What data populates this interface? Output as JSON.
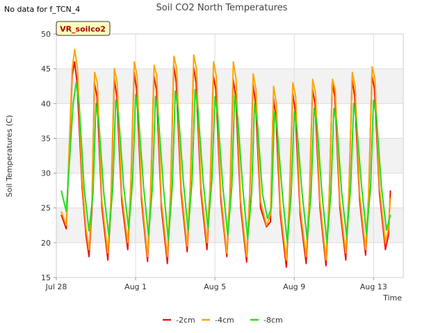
{
  "header": {
    "no_data_note": "No data for f_TCN_4"
  },
  "chart_data": {
    "type": "line",
    "title": "Soil CO2 North Temperatures",
    "site_label": "VR_soilco2",
    "xlabel": "Time",
    "ylabel": "Soil Temperatures (C)",
    "xlim": [
      0,
      17.5
    ],
    "ylim": [
      15,
      50
    ],
    "x_ticks": [
      {
        "value": 0,
        "label": "Jul 28"
      },
      {
        "value": 4,
        "label": "Aug 1"
      },
      {
        "value": 8,
        "label": "Aug 5"
      },
      {
        "value": 12,
        "label": "Aug 9"
      },
      {
        "value": 16,
        "label": "Aug 13"
      }
    ],
    "y_ticks": [
      15,
      20,
      25,
      30,
      35,
      40,
      45,
      50
    ],
    "shaded_bands": [
      [
        20,
        25
      ],
      [
        30,
        35
      ],
      [
        40,
        45
      ]
    ],
    "grid": true,
    "legend_position": "bottom-center",
    "x_units": "days since Jul 28 00:00",
    "series": [
      {
        "name": "-2cm",
        "color": "#ee1111",
        "peaks": [
          46.0,
          43.0,
          43.5,
          44.5,
          44.0,
          45.5,
          45.3,
          44.0,
          43.5,
          42.8,
          40.8,
          41.5,
          42.0,
          43.0,
          43.5,
          44.0
        ],
        "troughs": [
          22.0,
          18.0,
          17.5,
          19.0,
          17.3,
          17.0,
          18.7,
          19.0,
          18.0,
          17.2,
          22.3,
          16.5,
          17.0,
          16.7,
          17.5,
          18.2,
          19.0
        ],
        "points": [
          [
            0.25,
            24.0
          ],
          [
            0.5,
            22.0
          ],
          [
            0.8,
            44.0
          ],
          [
            0.92,
            46.0
          ],
          [
            1.05,
            43.0
          ],
          [
            1.3,
            28.0
          ],
          [
            1.5,
            21.0
          ],
          [
            1.65,
            18.0
          ],
          [
            1.8,
            25.0
          ],
          [
            1.92,
            43.0
          ],
          [
            2.05,
            41.0
          ],
          [
            2.3,
            25.0
          ],
          [
            2.6,
            17.5
          ],
          [
            2.75,
            25.0
          ],
          [
            2.92,
            43.5
          ],
          [
            3.05,
            41.0
          ],
          [
            3.3,
            26.0
          ],
          [
            3.6,
            19.0
          ],
          [
            3.75,
            27.0
          ],
          [
            3.92,
            44.5
          ],
          [
            4.05,
            42.0
          ],
          [
            4.3,
            26.0
          ],
          [
            4.6,
            17.3
          ],
          [
            4.75,
            26.0
          ],
          [
            4.92,
            44.0
          ],
          [
            5.05,
            42.0
          ],
          [
            5.3,
            25.0
          ],
          [
            5.6,
            17.0
          ],
          [
            5.75,
            26.0
          ],
          [
            5.92,
            45.5
          ],
          [
            6.05,
            43.0
          ],
          [
            6.3,
            27.0
          ],
          [
            6.6,
            18.7
          ],
          [
            6.75,
            27.0
          ],
          [
            6.92,
            45.3
          ],
          [
            7.05,
            43.0
          ],
          [
            7.3,
            27.0
          ],
          [
            7.6,
            19.0
          ],
          [
            7.75,
            27.0
          ],
          [
            7.92,
            44.0
          ],
          [
            8.05,
            42.0
          ],
          [
            8.3,
            26.0
          ],
          [
            8.6,
            18.0
          ],
          [
            8.75,
            26.0
          ],
          [
            8.92,
            43.5
          ],
          [
            9.05,
            41.0
          ],
          [
            9.3,
            25.0
          ],
          [
            9.6,
            17.2
          ],
          [
            9.75,
            26.0
          ],
          [
            9.92,
            42.8
          ],
          [
            10.05,
            40.0
          ],
          [
            10.3,
            25.0
          ],
          [
            10.6,
            22.3
          ],
          [
            10.8,
            23.0
          ],
          [
            10.95,
            40.8
          ],
          [
            11.08,
            38.0
          ],
          [
            11.3,
            24.0
          ],
          [
            11.6,
            16.5
          ],
          [
            11.75,
            25.0
          ],
          [
            11.92,
            41.5
          ],
          [
            12.05,
            39.0
          ],
          [
            12.3,
            24.0
          ],
          [
            12.6,
            17.0
          ],
          [
            12.75,
            25.0
          ],
          [
            12.92,
            42.0
          ],
          [
            13.05,
            40.0
          ],
          [
            13.3,
            25.0
          ],
          [
            13.6,
            16.7
          ],
          [
            13.75,
            25.0
          ],
          [
            13.92,
            43.0
          ],
          [
            14.05,
            41.0
          ],
          [
            14.3,
            25.0
          ],
          [
            14.6,
            17.5
          ],
          [
            14.75,
            26.0
          ],
          [
            14.92,
            43.5
          ],
          [
            15.05,
            41.0
          ],
          [
            15.3,
            26.0
          ],
          [
            15.6,
            18.2
          ],
          [
            15.75,
            26.0
          ],
          [
            15.92,
            44.0
          ],
          [
            16.05,
            42.0
          ],
          [
            16.3,
            27.0
          ],
          [
            16.6,
            19.0
          ],
          [
            16.75,
            21.0
          ],
          [
            16.85,
            27.5
          ]
        ]
      },
      {
        "name": "-4cm",
        "color": "#ffa500",
        "peaks": [
          47.8,
          44.5,
          45.0,
          46.0,
          45.5,
          46.8,
          47.0,
          46.0,
          46.0,
          44.3,
          42.5,
          43.0,
          43.5,
          43.5,
          44.5,
          45.3
        ],
        "troughs": [
          22.5,
          19.0,
          18.5,
          20.0,
          18.0,
          18.0,
          19.5,
          20.0,
          18.5,
          18.0,
          22.5,
          17.5,
          18.0,
          17.5,
          18.5,
          19.0,
          20.0
        ],
        "points": [
          [
            0.25,
            24.5
          ],
          [
            0.5,
            22.5
          ],
          [
            0.8,
            45.0
          ],
          [
            0.93,
            47.8
          ],
          [
            1.07,
            45.0
          ],
          [
            1.3,
            29.0
          ],
          [
            1.5,
            22.0
          ],
          [
            1.65,
            19.0
          ],
          [
            1.8,
            26.0
          ],
          [
            1.93,
            44.5
          ],
          [
            2.07,
            43.0
          ],
          [
            2.3,
            26.0
          ],
          [
            2.6,
            18.5
          ],
          [
            2.75,
            26.0
          ],
          [
            2.93,
            45.0
          ],
          [
            3.07,
            43.0
          ],
          [
            3.3,
            27.0
          ],
          [
            3.6,
            20.0
          ],
          [
            3.75,
            28.0
          ],
          [
            3.93,
            46.0
          ],
          [
            4.07,
            44.0
          ],
          [
            4.3,
            27.0
          ],
          [
            4.6,
            18.0
          ],
          [
            4.75,
            27.0
          ],
          [
            4.93,
            45.5
          ],
          [
            5.07,
            44.0
          ],
          [
            5.3,
            26.0
          ],
          [
            5.6,
            18.0
          ],
          [
            5.75,
            27.0
          ],
          [
            5.93,
            46.8
          ],
          [
            6.07,
            45.0
          ],
          [
            6.3,
            28.0
          ],
          [
            6.6,
            19.5
          ],
          [
            6.75,
            28.0
          ],
          [
            6.93,
            47.0
          ],
          [
            7.07,
            45.0
          ],
          [
            7.3,
            28.0
          ],
          [
            7.6,
            20.0
          ],
          [
            7.75,
            28.0
          ],
          [
            7.93,
            46.0
          ],
          [
            8.07,
            44.0
          ],
          [
            8.3,
            27.0
          ],
          [
            8.6,
            18.5
          ],
          [
            8.75,
            27.0
          ],
          [
            8.93,
            46.0
          ],
          [
            9.07,
            43.5
          ],
          [
            9.3,
            26.0
          ],
          [
            9.6,
            18.0
          ],
          [
            9.75,
            27.0
          ],
          [
            9.93,
            44.3
          ],
          [
            10.07,
            42.0
          ],
          [
            10.3,
            26.0
          ],
          [
            10.6,
            22.5
          ],
          [
            10.8,
            24.0
          ],
          [
            10.96,
            42.5
          ],
          [
            11.1,
            40.0
          ],
          [
            11.3,
            25.0
          ],
          [
            11.6,
            17.5
          ],
          [
            11.75,
            26.0
          ],
          [
            11.93,
            43.0
          ],
          [
            12.07,
            41.0
          ],
          [
            12.3,
            25.0
          ],
          [
            12.6,
            18.0
          ],
          [
            12.75,
            26.0
          ],
          [
            12.93,
            43.5
          ],
          [
            13.07,
            41.5
          ],
          [
            13.3,
            26.0
          ],
          [
            13.6,
            17.5
          ],
          [
            13.75,
            26.0
          ],
          [
            13.93,
            43.5
          ],
          [
            14.07,
            42.0
          ],
          [
            14.3,
            26.0
          ],
          [
            14.6,
            18.5
          ],
          [
            14.75,
            27.0
          ],
          [
            14.93,
            44.5
          ],
          [
            15.07,
            42.5
          ],
          [
            15.3,
            27.0
          ],
          [
            15.6,
            19.0
          ],
          [
            15.75,
            27.0
          ],
          [
            15.93,
            45.3
          ],
          [
            16.07,
            43.5
          ],
          [
            16.3,
            28.0
          ],
          [
            16.6,
            20.0
          ],
          [
            16.75,
            22.0
          ],
          [
            16.85,
            26.5
          ]
        ]
      },
      {
        "name": "-8cm",
        "color": "#22dd22",
        "peaks": [
          43.0,
          40.0,
          40.5,
          41.3,
          41.0,
          41.8,
          42.0,
          41.0,
          41.2,
          40.0,
          38.8,
          38.8,
          39.3,
          39.3,
          40.0,
          40.5
        ],
        "troughs": [
          24.5,
          21.7,
          21.0,
          22.0,
          21.0,
          20.3,
          21.7,
          22.0,
          21.0,
          20.5,
          23.5,
          20.0,
          20.5,
          20.0,
          20.8,
          21.2,
          21.8
        ],
        "points": [
          [
            0.25,
            27.5
          ],
          [
            0.5,
            24.5
          ],
          [
            0.85,
            40.0
          ],
          [
            1.0,
            43.0
          ],
          [
            1.15,
            40.0
          ],
          [
            1.4,
            28.0
          ],
          [
            1.65,
            21.7
          ],
          [
            1.85,
            27.0
          ],
          [
            2.0,
            40.0
          ],
          [
            2.15,
            37.0
          ],
          [
            2.4,
            27.0
          ],
          [
            2.65,
            21.0
          ],
          [
            2.85,
            28.0
          ],
          [
            3.0,
            40.5
          ],
          [
            3.15,
            38.0
          ],
          [
            3.4,
            28.0
          ],
          [
            3.65,
            22.0
          ],
          [
            3.85,
            29.0
          ],
          [
            4.0,
            41.3
          ],
          [
            4.15,
            38.0
          ],
          [
            4.4,
            28.0
          ],
          [
            4.65,
            21.0
          ],
          [
            4.85,
            28.0
          ],
          [
            5.0,
            41.0
          ],
          [
            5.15,
            38.0
          ],
          [
            5.4,
            28.0
          ],
          [
            5.65,
            20.3
          ],
          [
            5.85,
            28.0
          ],
          [
            6.0,
            41.8
          ],
          [
            6.15,
            39.0
          ],
          [
            6.4,
            29.0
          ],
          [
            6.65,
            21.7
          ],
          [
            6.85,
            29.0
          ],
          [
            7.0,
            42.0
          ],
          [
            7.15,
            39.0
          ],
          [
            7.4,
            29.0
          ],
          [
            7.65,
            22.0
          ],
          [
            7.85,
            29.0
          ],
          [
            8.0,
            41.0
          ],
          [
            8.15,
            38.0
          ],
          [
            8.4,
            28.0
          ],
          [
            8.65,
            21.0
          ],
          [
            8.85,
            28.0
          ],
          [
            9.0,
            41.2
          ],
          [
            9.15,
            38.0
          ],
          [
            9.4,
            28.0
          ],
          [
            9.65,
            20.5
          ],
          [
            9.85,
            27.0
          ],
          [
            10.0,
            40.0
          ],
          [
            10.15,
            37.0
          ],
          [
            10.4,
            27.0
          ],
          [
            10.65,
            23.5
          ],
          [
            10.85,
            25.0
          ],
          [
            11.0,
            38.8
          ],
          [
            11.15,
            36.0
          ],
          [
            11.4,
            27.0
          ],
          [
            11.65,
            20.0
          ],
          [
            11.85,
            27.0
          ],
          [
            12.0,
            38.8
          ],
          [
            12.15,
            36.0
          ],
          [
            12.4,
            27.0
          ],
          [
            12.65,
            20.5
          ],
          [
            12.85,
            27.0
          ],
          [
            13.0,
            39.3
          ],
          [
            13.15,
            37.0
          ],
          [
            13.4,
            27.0
          ],
          [
            13.65,
            20.0
          ],
          [
            13.85,
            27.0
          ],
          [
            14.0,
            39.3
          ],
          [
            14.15,
            37.0
          ],
          [
            14.4,
            27.0
          ],
          [
            14.65,
            20.8
          ],
          [
            14.85,
            28.0
          ],
          [
            15.0,
            40.0
          ],
          [
            15.15,
            37.0
          ],
          [
            15.4,
            28.0
          ],
          [
            15.65,
            21.2
          ],
          [
            15.85,
            28.0
          ],
          [
            16.0,
            40.5
          ],
          [
            16.15,
            38.0
          ],
          [
            16.4,
            28.0
          ],
          [
            16.65,
            21.8
          ],
          [
            16.85,
            24.0
          ]
        ]
      }
    ]
  }
}
